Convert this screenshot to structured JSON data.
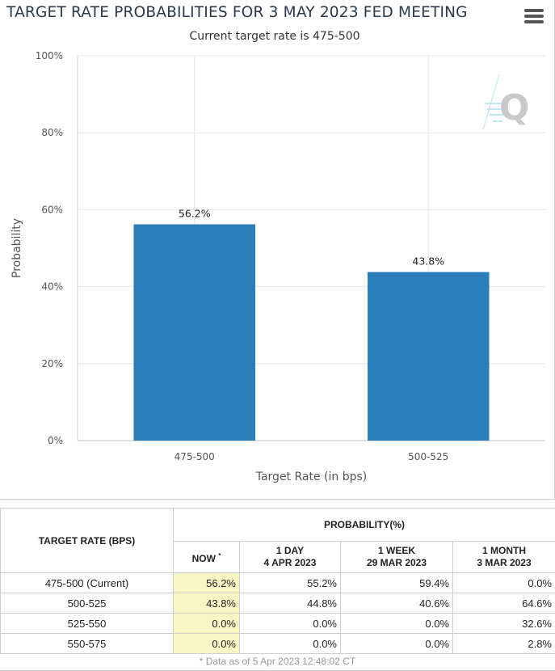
{
  "chart_data": {
    "type": "bar",
    "title": "TARGET RATE PROBABILITIES FOR 3 MAY 2023 FED MEETING",
    "subtitle": "Current target rate is 475-500",
    "categories": [
      "475-500",
      "500-525"
    ],
    "values": [
      56.2,
      43.8
    ],
    "data_labels": [
      "56.2%",
      "43.8%"
    ],
    "xlabel": "Target Rate (in bps)",
    "ylabel": "Probability",
    "ylim": [
      0,
      100
    ],
    "yticks": [
      0,
      20,
      40,
      60,
      80,
      100
    ],
    "ytick_labels": [
      "0%",
      "20%",
      "40%",
      "60%",
      "80%",
      "100%"
    ],
    "grid": true,
    "legend": "none",
    "bar_color": "#2a7fba"
  },
  "menu": {
    "icon": "hamburger-menu-icon"
  },
  "watermark": {
    "icon": "q-logo-icon"
  },
  "table": {
    "rate_header": "TARGET RATE (BPS)",
    "prob_header": "PROBABILITY(%)",
    "columns": [
      {
        "line1": "NOW",
        "marker": "*",
        "line2": ""
      },
      {
        "line1": "1 DAY",
        "line2": "4 APR 2023"
      },
      {
        "line1": "1 WEEK",
        "line2": "29 MAR 2023"
      },
      {
        "line1": "1 MONTH",
        "line2": "3 MAR 2023"
      }
    ],
    "rows": [
      {
        "rate": "475-500 (Current)",
        "values": [
          "56.2%",
          "55.2%",
          "59.4%",
          "0.0%"
        ]
      },
      {
        "rate": "500-525",
        "values": [
          "43.8%",
          "44.8%",
          "40.6%",
          "64.6%"
        ]
      },
      {
        "rate": "525-550",
        "values": [
          "0.0%",
          "0.0%",
          "0.0%",
          "32.6%"
        ]
      },
      {
        "rate": "550-575",
        "values": [
          "0.0%",
          "0.0%",
          "0.0%",
          "2.8%"
        ]
      }
    ],
    "footnote": "* Data as of 5 Apr 2023 12:48:02 CT"
  }
}
